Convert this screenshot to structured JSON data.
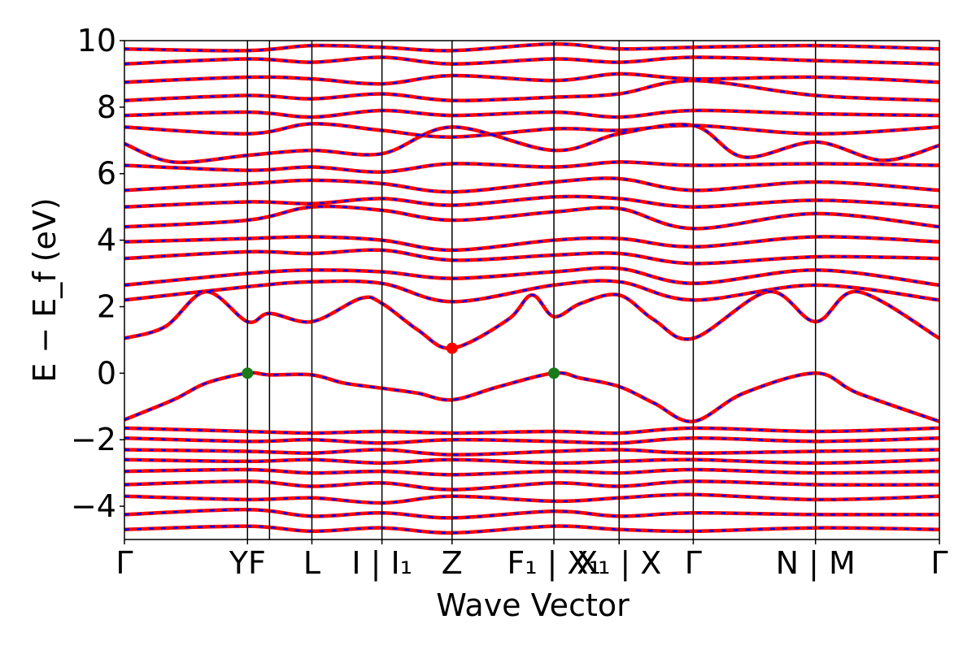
{
  "chart_data": {
    "type": "line",
    "title": "",
    "xlabel": "Wave Vector",
    "ylabel": "E − E_f (eV)",
    "ylim": [
      -5,
      10
    ],
    "yticks": [
      -4,
      -2,
      0,
      2,
      4,
      6,
      8,
      10
    ],
    "ytick_labels": [
      "−4",
      "−2",
      "0",
      "2",
      "4",
      "6",
      "8",
      "10"
    ],
    "xlim": [
      0,
      1
    ],
    "kpoints": [
      {
        "pos": 0.0,
        "label": "Γ"
      },
      {
        "pos": 0.151,
        "label": "YF"
      },
      {
        "pos": 0.23,
        "label": "L"
      },
      {
        "pos": 0.316,
        "label": "I | I₁"
      },
      {
        "pos": 0.402,
        "label": "Z"
      },
      {
        "pos": 0.527,
        "label": "F₁ | X₁"
      },
      {
        "pos": 0.607,
        "label": "X₁ | X"
      },
      {
        "pos": 0.698,
        "label": "Γ"
      },
      {
        "pos": 0.848,
        "label": "N | M"
      },
      {
        "pos": 1.0,
        "label": "Γ"
      }
    ],
    "vlines": [
      0.151,
      0.178,
      0.23,
      0.316,
      0.402,
      0.527,
      0.607,
      0.698,
      0.848
    ],
    "grid": false,
    "series": [
      {
        "color": "#ff0000",
        "style": "solid",
        "bands": [
          {
            "x": [
              0,
              0.06,
              0.1,
              0.151,
              0.178,
              0.23,
              0.27,
              0.316,
              0.36,
              0.402,
              0.46,
              0.527,
              0.56,
              0.607,
              0.65,
              0.698,
              0.76,
              0.848,
              0.9,
              1.0
            ],
            "y": [
              -1.4,
              -0.8,
              -0.3,
              0.0,
              -0.05,
              -0.05,
              -0.3,
              -0.45,
              -0.6,
              -0.8,
              -0.4,
              0.0,
              -0.15,
              -0.4,
              -0.9,
              -1.45,
              -0.6,
              0.0,
              -0.6,
              -1.45
            ]
          },
          {
            "x": [
              0,
              0.05,
              0.1,
              0.151,
              0.178,
              0.23,
              0.29,
              0.316,
              0.36,
              0.402,
              0.47,
              0.5,
              0.527,
              0.56,
              0.607,
              0.65,
              0.698,
              0.79,
              0.848,
              0.9,
              1.0
            ],
            "y": [
              1.05,
              1.4,
              2.45,
              1.55,
              1.8,
              1.55,
              2.25,
              2.1,
              1.3,
              0.75,
              1.6,
              2.35,
              1.7,
              2.1,
              2.35,
              1.6,
              1.05,
              2.45,
              1.55,
              2.45,
              1.05
            ]
          },
          {
            "x": [
              0,
              0.151,
              0.23,
              0.316,
              0.402,
              0.527,
              0.607,
              0.698,
              0.848,
              1.0
            ],
            "y": [
              2.2,
              2.6,
              2.75,
              2.7,
              2.15,
              2.65,
              2.75,
              2.2,
              2.65,
              2.2
            ]
          },
          {
            "x": [
              0,
              0.151,
              0.23,
              0.316,
              0.402,
              0.527,
              0.607,
              0.698,
              0.848,
              1.0
            ],
            "y": [
              2.65,
              3.0,
              3.1,
              3.05,
              2.85,
              3.05,
              3.15,
              2.7,
              3.1,
              2.65
            ]
          },
          {
            "x": [
              0,
              0.151,
              0.23,
              0.316,
              0.402,
              0.527,
              0.607,
              0.698,
              0.848,
              1.0
            ],
            "y": [
              3.45,
              3.65,
              3.6,
              3.7,
              3.4,
              3.55,
              3.6,
              3.3,
              3.5,
              3.45
            ]
          },
          {
            "x": [
              0,
              0.151,
              0.23,
              0.316,
              0.402,
              0.527,
              0.607,
              0.698,
              0.848,
              1.0
            ],
            "y": [
              3.95,
              4.05,
              4.1,
              4.0,
              3.7,
              4.0,
              4.05,
              3.8,
              4.1,
              3.95
            ]
          },
          {
            "x": [
              0,
              0.151,
              0.23,
              0.316,
              0.402,
              0.527,
              0.607,
              0.698,
              0.848,
              1.0
            ],
            "y": [
              4.4,
              4.6,
              5.0,
              4.9,
              4.6,
              4.85,
              4.95,
              4.35,
              4.8,
              4.4
            ]
          },
          {
            "x": [
              0,
              0.151,
              0.23,
              0.316,
              0.402,
              0.527,
              0.607,
              0.698,
              0.848,
              1.0
            ],
            "y": [
              5.0,
              5.15,
              5.1,
              5.25,
              5.05,
              5.3,
              5.25,
              5.0,
              5.2,
              5.0
            ]
          },
          {
            "x": [
              0,
              0.151,
              0.23,
              0.316,
              0.402,
              0.527,
              0.607,
              0.698,
              0.848,
              1.0
            ],
            "y": [
              5.5,
              5.7,
              5.8,
              5.7,
              5.45,
              5.75,
              5.85,
              5.5,
              5.75,
              5.5
            ]
          },
          {
            "x": [
              0,
              0.151,
              0.23,
              0.316,
              0.402,
              0.527,
              0.607,
              0.698,
              0.848,
              1.0
            ],
            "y": [
              6.25,
              6.1,
              6.2,
              6.05,
              6.3,
              6.2,
              6.35,
              6.25,
              6.3,
              6.25
            ]
          },
          {
            "x": [
              0,
              0.06,
              0.151,
              0.23,
              0.316,
              0.402,
              0.527,
              0.607,
              0.698,
              0.76,
              0.848,
              0.93,
              1.0
            ],
            "y": [
              6.9,
              6.35,
              6.55,
              6.7,
              6.6,
              7.4,
              6.7,
              7.2,
              7.45,
              6.5,
              6.95,
              6.4,
              6.85
            ]
          },
          {
            "x": [
              0,
              0.151,
              0.23,
              0.316,
              0.402,
              0.527,
              0.607,
              0.698,
              0.848,
              1.0
            ],
            "y": [
              7.4,
              7.2,
              7.5,
              7.3,
              7.1,
              7.35,
              7.3,
              7.45,
              7.2,
              7.4
            ]
          },
          {
            "x": [
              0,
              0.151,
              0.23,
              0.316,
              0.402,
              0.527,
              0.607,
              0.698,
              0.848,
              1.0
            ],
            "y": [
              7.75,
              7.85,
              7.7,
              7.9,
              7.75,
              7.85,
              7.7,
              7.9,
              7.8,
              7.75
            ]
          },
          {
            "x": [
              0,
              0.151,
              0.23,
              0.316,
              0.402,
              0.527,
              0.607,
              0.698,
              0.848,
              1.0
            ],
            "y": [
              8.2,
              8.35,
              8.25,
              8.4,
              8.2,
              8.3,
              8.4,
              8.8,
              8.35,
              8.2
            ]
          },
          {
            "x": [
              0,
              0.151,
              0.23,
              0.316,
              0.402,
              0.527,
              0.607,
              0.698,
              0.848,
              1.0
            ],
            "y": [
              8.75,
              8.9,
              8.85,
              8.7,
              8.95,
              8.8,
              9.0,
              8.85,
              8.9,
              8.75
            ]
          },
          {
            "x": [
              0,
              0.151,
              0.23,
              0.316,
              0.402,
              0.527,
              0.607,
              0.698,
              0.848,
              1.0
            ],
            "y": [
              9.3,
              9.45,
              9.35,
              9.5,
              9.3,
              9.45,
              9.35,
              9.5,
              9.4,
              9.3
            ]
          },
          {
            "x": [
              0,
              0.151,
              0.23,
              0.316,
              0.402,
              0.527,
              0.607,
              0.698,
              0.848,
              1.0
            ],
            "y": [
              9.75,
              9.7,
              9.85,
              9.8,
              9.7,
              9.9,
              9.75,
              9.8,
              9.85,
              9.75
            ]
          },
          {
            "x": [
              0,
              0.151,
              0.23,
              0.316,
              0.402,
              0.527,
              0.607,
              0.698,
              0.848,
              1.0
            ],
            "y": [
              -1.65,
              -1.75,
              -1.8,
              -1.75,
              -1.8,
              -1.75,
              -1.8,
              -1.65,
              -1.75,
              -1.65
            ]
          },
          {
            "x": [
              0,
              0.151,
              0.23,
              0.316,
              0.402,
              0.527,
              0.607,
              0.698,
              0.848,
              1.0
            ],
            "y": [
              -1.95,
              -2.05,
              -2.0,
              -2.1,
              -2.0,
              -2.05,
              -2.1,
              -1.95,
              -2.05,
              -1.95
            ]
          },
          {
            "x": [
              0,
              0.151,
              0.23,
              0.316,
              0.402,
              0.527,
              0.607,
              0.698,
              0.848,
              1.0
            ],
            "y": [
              -2.3,
              -2.35,
              -2.4,
              -2.3,
              -2.45,
              -2.35,
              -2.3,
              -2.4,
              -2.35,
              -2.3
            ]
          },
          {
            "x": [
              0,
              0.151,
              0.23,
              0.316,
              0.402,
              0.527,
              0.607,
              0.698,
              0.848,
              1.0
            ],
            "y": [
              -2.6,
              -2.65,
              -2.6,
              -2.7,
              -2.6,
              -2.7,
              -2.65,
              -2.6,
              -2.7,
              -2.6
            ]
          },
          {
            "x": [
              0,
              0.151,
              0.23,
              0.316,
              0.402,
              0.527,
              0.607,
              0.698,
              0.848,
              1.0
            ],
            "y": [
              -2.95,
              -2.9,
              -3.0,
              -2.95,
              -3.05,
              -2.95,
              -3.0,
              -2.9,
              -3.0,
              -2.95
            ]
          },
          {
            "x": [
              0,
              0.151,
              0.23,
              0.316,
              0.402,
              0.527,
              0.607,
              0.698,
              0.848,
              1.0
            ],
            "y": [
              -3.35,
              -3.25,
              -3.4,
              -3.3,
              -3.5,
              -3.3,
              -3.4,
              -3.25,
              -3.35,
              -3.35
            ]
          },
          {
            "x": [
              0,
              0.151,
              0.23,
              0.316,
              0.402,
              0.527,
              0.607,
              0.698,
              0.848,
              1.0
            ],
            "y": [
              -3.7,
              -3.8,
              -3.75,
              -3.9,
              -3.7,
              -3.85,
              -3.75,
              -3.65,
              -3.8,
              -3.7
            ]
          },
          {
            "x": [
              0,
              0.151,
              0.23,
              0.316,
              0.402,
              0.527,
              0.607,
              0.698,
              0.848,
              1.0
            ],
            "y": [
              -4.25,
              -4.1,
              -4.3,
              -4.2,
              -4.35,
              -4.15,
              -4.3,
              -4.2,
              -4.25,
              -4.25
            ]
          },
          {
            "x": [
              0,
              0.151,
              0.23,
              0.316,
              0.402,
              0.527,
              0.607,
              0.698,
              0.848,
              1.0
            ],
            "y": [
              -4.7,
              -4.6,
              -4.75,
              -4.65,
              -4.8,
              -4.6,
              -4.7,
              -4.75,
              -4.65,
              -4.7
            ]
          }
        ]
      },
      {
        "color": "#0000ff",
        "style": "dashed",
        "same_bands_as_previous": true
      }
    ],
    "markers": [
      {
        "x": 0.151,
        "y": 0.0,
        "color": "#1a7a1a"
      },
      {
        "x": 0.527,
        "y": 0.0,
        "color": "#1a7a1a"
      },
      {
        "x": 0.402,
        "y": 0.75,
        "color": "#ff0000"
      }
    ]
  }
}
